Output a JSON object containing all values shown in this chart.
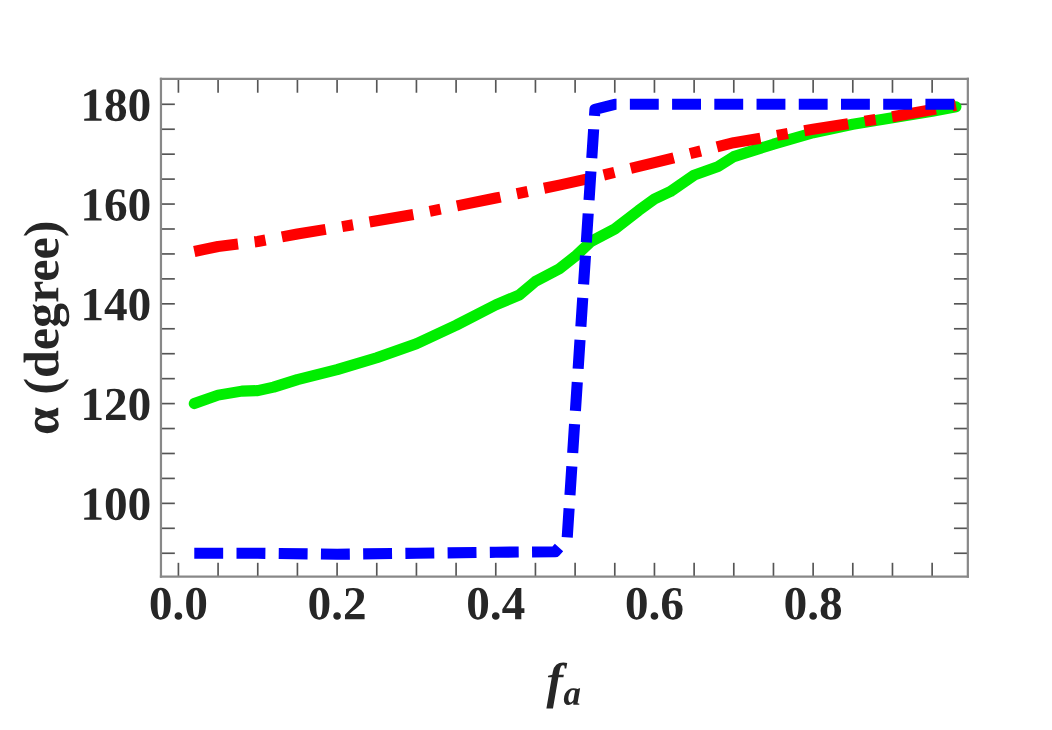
{
  "chart_data": {
    "type": "line",
    "xlabel": "f$_{a}$",
    "ylabel": "α (degree)",
    "xlim": [
      -0.022,
      0.995
    ],
    "ylim": [
      85.3,
      185.1
    ],
    "xticks": [
      {
        "value": 0.0,
        "label": "0.0"
      },
      {
        "value": 0.05,
        "label": null
      },
      {
        "value": 0.1,
        "label": null
      },
      {
        "value": 0.15,
        "label": null
      },
      {
        "value": 0.2,
        "label": "0.2"
      },
      {
        "value": 0.25,
        "label": null
      },
      {
        "value": 0.3,
        "label": null
      },
      {
        "value": 0.35,
        "label": null
      },
      {
        "value": 0.4,
        "label": "0.4"
      },
      {
        "value": 0.45,
        "label": null
      },
      {
        "value": 0.5,
        "label": null
      },
      {
        "value": 0.55,
        "label": null
      },
      {
        "value": 0.6,
        "label": "0.6"
      },
      {
        "value": 0.65,
        "label": null
      },
      {
        "value": 0.7,
        "label": null
      },
      {
        "value": 0.75,
        "label": null
      },
      {
        "value": 0.8,
        "label": "0.8"
      },
      {
        "value": 0.85,
        "label": null
      },
      {
        "value": 0.9,
        "label": null
      },
      {
        "value": 0.95,
        "label": null
      }
    ],
    "yticks": [
      {
        "value": 90,
        "label": null
      },
      {
        "value": 95,
        "label": null
      },
      {
        "value": 100,
        "label": "100"
      },
      {
        "value": 105,
        "label": null
      },
      {
        "value": 110,
        "label": null
      },
      {
        "value": 115,
        "label": null
      },
      {
        "value": 120,
        "label": "120"
      },
      {
        "value": 125,
        "label": null
      },
      {
        "value": 130,
        "label": null
      },
      {
        "value": 135,
        "label": null
      },
      {
        "value": 140,
        "label": "140"
      },
      {
        "value": 145,
        "label": null
      },
      {
        "value": 150,
        "label": null
      },
      {
        "value": 155,
        "label": null
      },
      {
        "value": 160,
        "label": "160"
      },
      {
        "value": 165,
        "label": null
      },
      {
        "value": 170,
        "label": null
      },
      {
        "value": 175,
        "label": null
      },
      {
        "value": 180,
        "label": "180"
      }
    ],
    "grid": false,
    "legend": false,
    "series": [
      {
        "color": "#00ee00",
        "line_style": "solid",
        "x": [
          0.02,
          0.05,
          0.08,
          0.1,
          0.12,
          0.15,
          0.2,
          0.25,
          0.3,
          0.35,
          0.4,
          0.43,
          0.45,
          0.48,
          0.5,
          0.52,
          0.55,
          0.58,
          0.6,
          0.62,
          0.65,
          0.68,
          0.7,
          0.75,
          0.8,
          0.85,
          0.9,
          0.95,
          0.98
        ],
        "values": [
          120,
          121.7,
          122.5,
          122.6,
          123.3,
          124.8,
          126.8,
          129.2,
          132,
          135.7,
          139.8,
          141.8,
          144.5,
          147,
          149.5,
          152.5,
          155,
          158.7,
          161,
          162.5,
          165.8,
          167.5,
          169.5,
          172,
          174.3,
          176,
          177.3,
          178.6,
          179.5
        ]
      },
      {
        "color": "#ff0000",
        "line_style": "dashdot",
        "x": [
          0.02,
          0.05,
          0.1,
          0.15,
          0.2,
          0.3,
          0.4,
          0.48,
          0.52,
          0.6,
          0.7,
          0.8,
          0.9,
          0.98
        ],
        "values": [
          150.5,
          151.5,
          152.5,
          154,
          155.3,
          158,
          161.2,
          163.8,
          165.2,
          168.3,
          172.3,
          175,
          177.5,
          179.8
        ]
      },
      {
        "color": "#0000ff",
        "line_style": "dashed",
        "x": [
          0.02,
          0.1,
          0.2,
          0.3,
          0.4,
          0.475,
          0.49,
          0.525,
          0.55,
          0.98
        ],
        "values": [
          90,
          90,
          89.8,
          90,
          90.2,
          90.3,
          93,
          179,
          180,
          180
        ]
      }
    ]
  }
}
